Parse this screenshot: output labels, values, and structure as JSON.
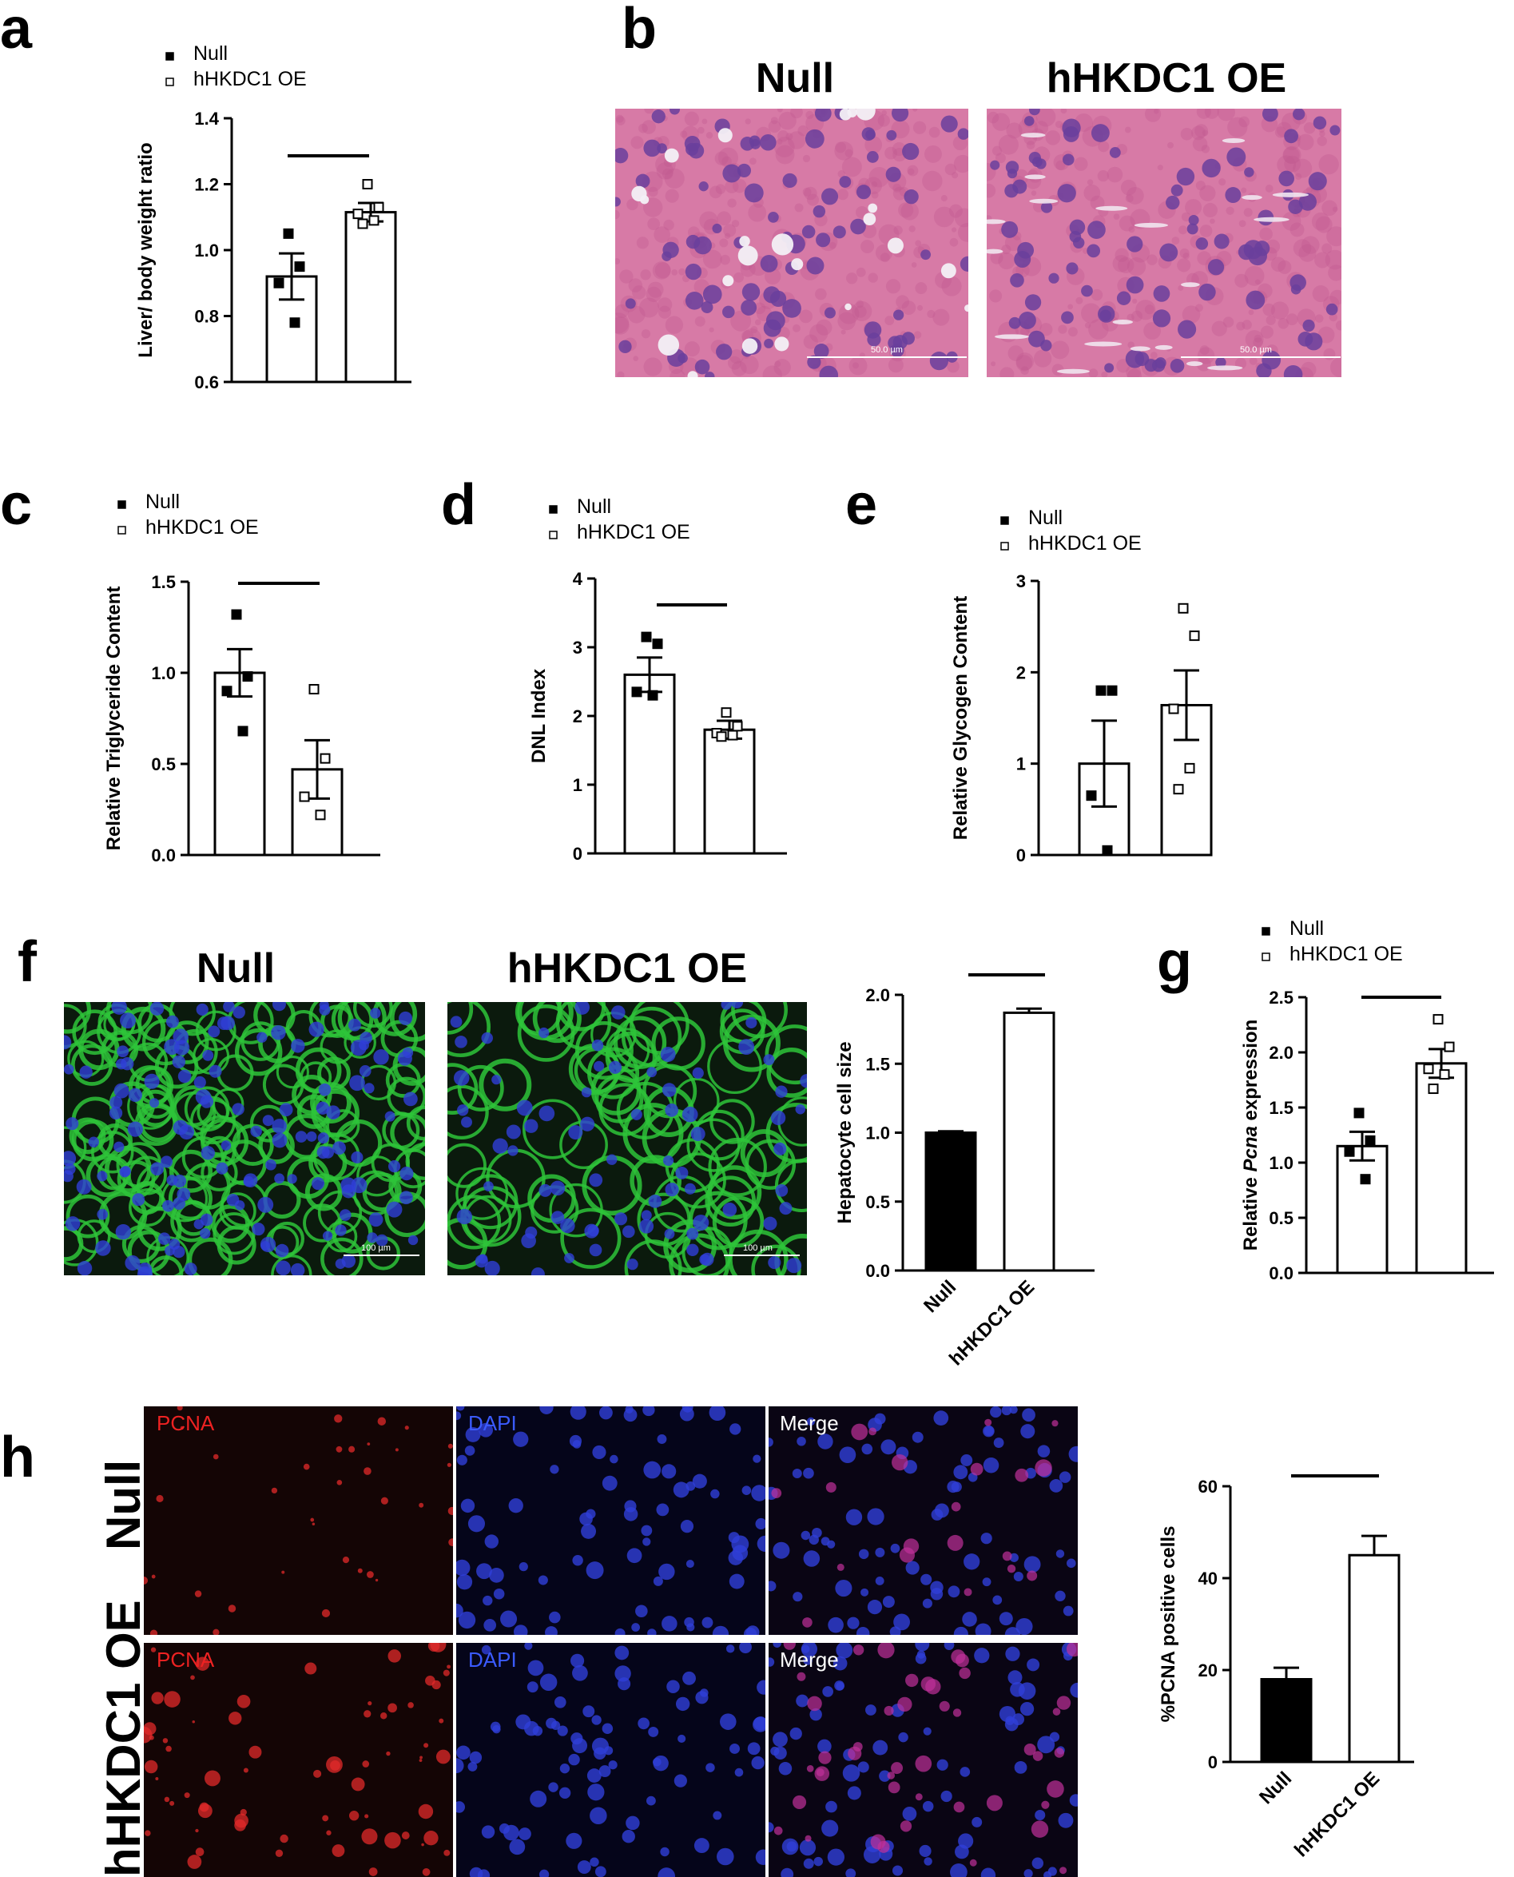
{
  "panels": {
    "a": "a",
    "b": "b",
    "c": "c",
    "d": "d",
    "e": "e",
    "f": "f",
    "g": "g",
    "h": "h"
  },
  "colors": {
    "he_bg": "#d77aa6",
    "he_nuclei": "#6a3f9c",
    "if_green": "#2ec43a",
    "if_blue": "#2f3fd8",
    "pcna_red": "#e12a2a",
    "bar_black": "#000000"
  },
  "panel_b": {
    "left_title": "Null",
    "right_title": "hHKDC1 OE",
    "left_scale": "50.0 µm",
    "right_scale": "50.0 µm"
  },
  "panel_f": {
    "left_title": "Null",
    "right_title": "hHKDC1 OE",
    "left_scale": "100 µm",
    "right_scale": "100 µm"
  },
  "panel_h": {
    "row1": "Null",
    "row2": "hHKDC1 OE",
    "ch1": "PCNA",
    "ch2": "DAPI",
    "ch3": "Merge"
  },
  "chart_data": [
    {
      "panel": "a",
      "type": "bar",
      "categories": [
        "Null",
        "hHKDC1 OE"
      ],
      "legend": [
        "Null",
        "hHKDC1 OE"
      ],
      "ylabel": "Liver/ body weight ratio",
      "ylim": [
        0.6,
        1.4
      ],
      "yticks": [
        "0.6",
        "0.8",
        "1.0",
        "1.2",
        "1.4"
      ],
      "values": [
        0.92,
        1.115
      ],
      "errors": [
        0.07,
        0.028
      ],
      "points": [
        [
          1.05,
          0.95,
          0.9,
          0.78
        ],
        [
          1.2,
          1.13,
          1.11,
          1.09,
          1.08
        ]
      ],
      "significance_bar": true
    },
    {
      "panel": "c",
      "type": "bar",
      "categories": [
        "Null",
        "hHKDC1 OE"
      ],
      "legend": [
        "Null",
        "hHKDC1 OE"
      ],
      "ylabel": "Relative Triglyceride Content",
      "ylim": [
        0.0,
        1.5
      ],
      "yticks": [
        "0.0",
        "0.5",
        "1.0",
        "1.5"
      ],
      "values": [
        1.0,
        0.47
      ],
      "errors": [
        0.13,
        0.16
      ],
      "points": [
        [
          1.32,
          0.98,
          0.9,
          0.68
        ],
        [
          0.91,
          0.53,
          0.32,
          0.22
        ]
      ],
      "significance_bar": true
    },
    {
      "panel": "d",
      "type": "bar",
      "categories": [
        "Null",
        "hHKDC1 OE"
      ],
      "legend": [
        "Null",
        "hHKDC1 OE"
      ],
      "ylabel": "DNL Index",
      "ylim": [
        0,
        4
      ],
      "yticks": [
        "0",
        "1",
        "2",
        "3",
        "4"
      ],
      "values": [
        2.6,
        1.8
      ],
      "errors": [
        0.25,
        0.13
      ],
      "points": [
        [
          3.15,
          3.05,
          2.35,
          2.3
        ],
        [
          2.05,
          1.85,
          1.75,
          1.72,
          1.7
        ]
      ],
      "significance_bar": true
    },
    {
      "panel": "e",
      "type": "bar",
      "categories": [
        "Null",
        "hHKDC1 OE"
      ],
      "legend": [
        "Null",
        "hHKDC1 OE"
      ],
      "ylabel": "Relative Glycogen Content",
      "ylim": [
        0,
        3
      ],
      "yticks": [
        "0",
        "1",
        "2",
        "3"
      ],
      "values": [
        1.0,
        1.64
      ],
      "errors": [
        0.47,
        0.38
      ],
      "points": [
        [
          1.8,
          1.8,
          0.65,
          0.05
        ],
        [
          2.7,
          2.4,
          1.6,
          0.95,
          0.72
        ]
      ],
      "significance_bar": false
    },
    {
      "panel": "f",
      "type": "bar",
      "categories": [
        "Null",
        "hHKDC1 OE"
      ],
      "ylabel": "Hepatocyte cell size",
      "ylim": [
        0.0,
        2.0
      ],
      "yticks": [
        "0.0",
        "0.5",
        "1.0",
        "1.5",
        "2.0"
      ],
      "values": [
        1.0,
        1.87
      ],
      "errors": [
        0.01,
        0.03
      ],
      "fills": [
        "black",
        "white"
      ],
      "significance_bar": true
    },
    {
      "panel": "g",
      "type": "bar",
      "categories": [
        "Null",
        "hHKDC1 OE"
      ],
      "legend": [
        "Null",
        "hHKDC1 OE"
      ],
      "ylabel_parts": [
        "Relative ",
        "Pcna",
        " expression"
      ],
      "ylim": [
        0.0,
        2.5
      ],
      "yticks": [
        "0.0",
        "0.5",
        "1.0",
        "1.5",
        "2.0",
        "2.5"
      ],
      "values": [
        1.15,
        1.9
      ],
      "errors": [
        0.13,
        0.13
      ],
      "points": [
        [
          1.45,
          1.2,
          1.1,
          0.85
        ],
        [
          2.3,
          2.05,
          1.85,
          1.8,
          1.67
        ]
      ],
      "significance_bar": true
    },
    {
      "panel": "h",
      "type": "bar",
      "categories": [
        "Null",
        "hHKDC1 OE"
      ],
      "ylabel": "%PCNA positive cells",
      "ylim": [
        0,
        60
      ],
      "yticks": [
        "0",
        "20",
        "40",
        "60"
      ],
      "values": [
        18,
        45
      ],
      "errors": [
        2.5,
        4.2
      ],
      "fills": [
        "black",
        "white"
      ],
      "significance_bar": true
    }
  ]
}
